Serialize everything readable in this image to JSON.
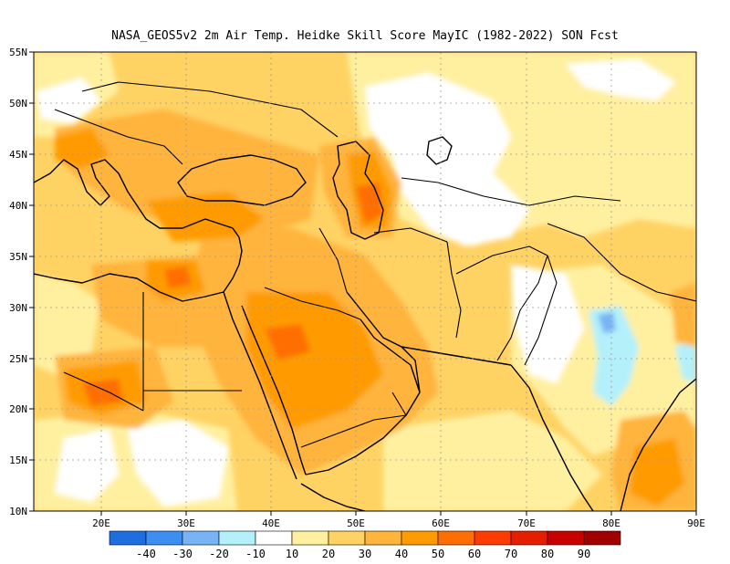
{
  "title": "NASA_GEOS5v2  2m Air Temp. Heidke Skill Score MayIC (1982-2022) SON Fcst",
  "map": {
    "lon_range": [
      12,
      90
    ],
    "lat_range": [
      10,
      55
    ],
    "lon_ticks": [
      "20E",
      "30E",
      "40E",
      "50E",
      "60E",
      "70E",
      "80E",
      "90E"
    ],
    "lat_ticks": [
      "55N",
      "50N",
      "45N",
      "40N",
      "35N",
      "30N",
      "25N",
      "20N",
      "15N",
      "10N"
    ],
    "gridlines": true,
    "land_outline_color": "#000000"
  },
  "colorbar": {
    "labels": [
      "-40",
      "-30",
      "-20",
      "-10",
      "10",
      "20",
      "30",
      "40",
      "50",
      "60",
      "70",
      "80",
      "90"
    ],
    "colors": [
      "#1e6ee0",
      "#3c8ff0",
      "#78b4f5",
      "#b4f0fa",
      "#ffffff",
      "#fff0a0",
      "#ffd264",
      "#ffb43c",
      "#ff9b00",
      "#ff6e00",
      "#ff3c00",
      "#e61e00",
      "#c80000",
      "#a00000"
    ]
  },
  "field_colors": {
    "neutral": "#ffffff",
    "lvl10": "#fff0a0",
    "lvl20": "#ffd264",
    "lvl30": "#ffb43c",
    "lvl40": "#ff9b00",
    "lvl50": "#ff6e00",
    "neg10": "#b4f0fa",
    "neg20": "#78b4f5"
  }
}
